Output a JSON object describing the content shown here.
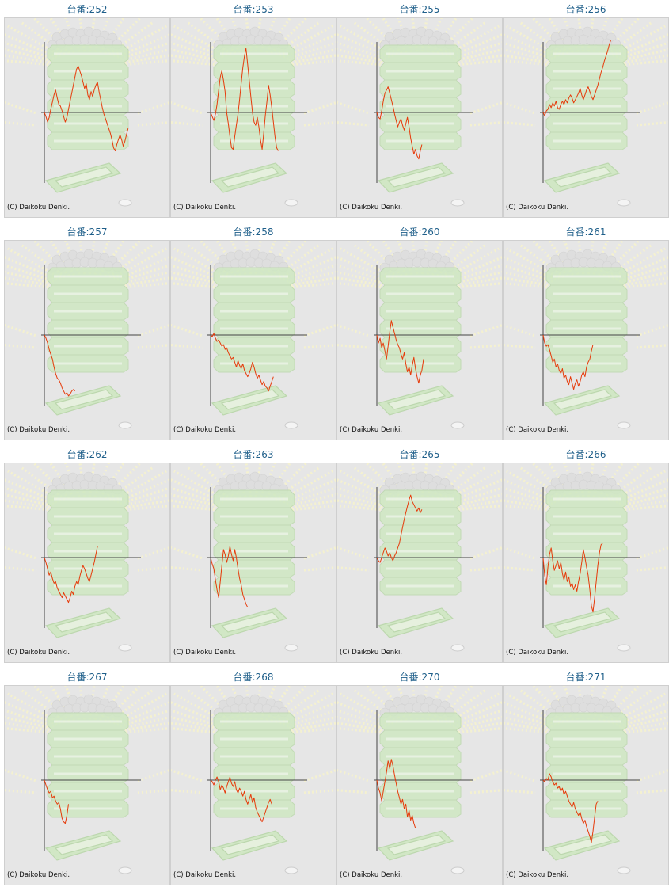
{
  "watermark": "(C) Daikoku Denki.",
  "colors": {
    "title_text": "#1f5f8a",
    "line": "#e63a0a",
    "axis": "#444444",
    "background": "#e6e6e6",
    "border": "#cfcfcf",
    "artwork_green": "#cfe8c2",
    "artwork_rays": "#f5f2cf"
  },
  "chart_data": [
    {
      "type": "line",
      "title": "台番:252",
      "xlim": [
        0,
        120
      ],
      "ylim": [
        -88,
        88
      ],
      "grid": false,
      "y": [
        0,
        -5,
        -12,
        -6,
        4,
        13,
        22,
        28,
        18,
        10,
        8,
        2,
        -5,
        -12,
        -6,
        4,
        14,
        24,
        34,
        44,
        54,
        58,
        52,
        46,
        38,
        30,
        36,
        22,
        16,
        26,
        20,
        28,
        34,
        38,
        26,
        16,
        6,
        -2,
        -8,
        -14,
        -20,
        -26,
        -34,
        -44,
        -48,
        -40,
        -34,
        -28,
        -34,
        -42,
        -36,
        -28,
        -20
      ]
    },
    {
      "type": "line",
      "title": "台番:253",
      "xlim": [
        0,
        120
      ],
      "ylim": [
        -88,
        88
      ],
      "grid": false,
      "y": [
        0,
        -5,
        -10,
        -2,
        10,
        28,
        44,
        52,
        40,
        26,
        0,
        -14,
        -30,
        -44,
        -46,
        -30,
        -16,
        -2,
        16,
        36,
        56,
        70,
        80,
        60,
        40,
        20,
        0,
        -12,
        -16,
        -6,
        -18,
        -34,
        -46,
        -26,
        -4,
        14,
        34,
        22,
        6,
        -12,
        -30,
        -44,
        -48
      ]
    },
    {
      "type": "line",
      "title": "台番:255",
      "xlim": [
        0,
        120
      ],
      "ylim": [
        -88,
        88
      ],
      "grid": false,
      "y": [
        0,
        -6,
        -8,
        2,
        14,
        24,
        28,
        32,
        24,
        16,
        8,
        -2,
        -10,
        -18,
        -12,
        -8,
        -16,
        -22,
        -14,
        -6,
        -18,
        -32,
        -42,
        -52,
        -46,
        -54,
        -58,
        -48,
        -40
      ]
    },
    {
      "type": "line",
      "title": "台番:256",
      "xlim": [
        0,
        120
      ],
      "ylim": [
        -88,
        88
      ],
      "grid": false,
      "y": [
        0,
        -4,
        2,
        4,
        10,
        6,
        12,
        8,
        14,
        6,
        4,
        10,
        14,
        10,
        16,
        12,
        18,
        22,
        18,
        12,
        16,
        20,
        24,
        30,
        22,
        16,
        22,
        28,
        32,
        26,
        20,
        16,
        22,
        28,
        34,
        42,
        50,
        56,
        64,
        70,
        76,
        84,
        90
      ]
    },
    {
      "type": "line",
      "title": "台番:257",
      "xlim": [
        0,
        120
      ],
      "ylim": [
        -88,
        88
      ],
      "grid": false,
      "y": [
        0,
        -4,
        -10,
        -18,
        -24,
        -30,
        -40,
        -48,
        -54,
        -56,
        -60,
        -66,
        -70,
        -74,
        -72,
        -76,
        -74,
        -70,
        -68,
        -70
      ]
    },
    {
      "type": "line",
      "title": "台番:258",
      "xlim": [
        0,
        120
      ],
      "ylim": [
        -88,
        88
      ],
      "grid": false,
      "y": [
        0,
        -2,
        2,
        -4,
        -8,
        -6,
        -10,
        -14,
        -12,
        -18,
        -16,
        -22,
        -26,
        -30,
        -28,
        -34,
        -40,
        -32,
        -38,
        -42,
        -36,
        -44,
        -48,
        -52,
        -48,
        -42,
        -34,
        -40,
        -48,
        -54,
        -50,
        -56,
        -62,
        -58,
        -64,
        -66,
        -70,
        -64,
        -58,
        -52
      ]
    },
    {
      "type": "line",
      "title": "台番:260",
      "xlim": [
        0,
        120
      ],
      "ylim": [
        -88,
        88
      ],
      "grid": false,
      "y": [
        0,
        -10,
        -4,
        -16,
        -10,
        -20,
        -30,
        -14,
        4,
        18,
        10,
        2,
        -6,
        -12,
        -16,
        -24,
        -30,
        -22,
        -36,
        -46,
        -40,
        -50,
        -38,
        -28,
        -42,
        -52,
        -60,
        -50,
        -44,
        -30
      ]
    },
    {
      "type": "line",
      "title": "台番:261",
      "xlim": [
        0,
        120
      ],
      "ylim": [
        -88,
        88
      ],
      "grid": false,
      "y": [
        0,
        -10,
        -14,
        -12,
        -18,
        -26,
        -34,
        -30,
        -40,
        -36,
        -44,
        -48,
        -42,
        -54,
        -50,
        -58,
        -62,
        -52,
        -60,
        -68,
        -60,
        -56,
        -64,
        -58,
        -50,
        -46,
        -52,
        -40,
        -34,
        -30,
        -20,
        -12
      ]
    },
    {
      "type": "line",
      "title": "台番:262",
      "xlim": [
        0,
        120
      ],
      "ylim": [
        -88,
        88
      ],
      "grid": false,
      "y": [
        0,
        -6,
        -14,
        -22,
        -18,
        -26,
        -32,
        -30,
        -38,
        -42,
        -46,
        -50,
        -44,
        -48,
        -52,
        -56,
        -50,
        -42,
        -46,
        -36,
        -30,
        -34,
        -24,
        -16,
        -10,
        -14,
        -20,
        -26,
        -30,
        -22,
        -14,
        -6,
        4,
        14
      ]
    },
    {
      "type": "line",
      "title": "台番:263",
      "xlim": [
        0,
        120
      ],
      "ylim": [
        -88,
        88
      ],
      "grid": false,
      "y": [
        0,
        -8,
        -14,
        -28,
        -40,
        -50,
        -30,
        -10,
        10,
        4,
        -6,
        2,
        14,
        4,
        -4,
        10,
        0,
        -14,
        -26,
        -34,
        -46,
        -52,
        -58,
        -62
      ]
    },
    {
      "type": "line",
      "title": "台番:265",
      "xlim": [
        0,
        120
      ],
      "ylim": [
        -88,
        88
      ],
      "grid": false,
      "y": [
        0,
        -4,
        -6,
        0,
        6,
        12,
        8,
        2,
        6,
        0,
        -4,
        2,
        6,
        12,
        18,
        28,
        38,
        48,
        56,
        64,
        72,
        78,
        70,
        66,
        62,
        58,
        62,
        56,
        60
      ]
    },
    {
      "type": "line",
      "title": "台番:266",
      "xlim": [
        0,
        120
      ],
      "ylim": [
        -88,
        88
      ],
      "grid": false,
      "y": [
        0,
        -22,
        -34,
        -12,
        4,
        12,
        -4,
        -16,
        -10,
        -4,
        -14,
        -6,
        -20,
        -28,
        -18,
        -30,
        -24,
        -36,
        -32,
        -40,
        -34,
        -42,
        -30,
        -20,
        -6,
        10,
        0,
        -12,
        -22,
        -40,
        -60,
        -68,
        -50,
        -30,
        -10,
        6,
        16,
        18
      ]
    },
    {
      "type": "line",
      "title": "台番:267",
      "xlim": [
        0,
        120
      ],
      "ylim": [
        -88,
        88
      ],
      "grid": false,
      "y": [
        0,
        -6,
        -12,
        -16,
        -14,
        -22,
        -20,
        -26,
        -30,
        -28,
        -36,
        -48,
        -52,
        -54,
        -44,
        -30
      ]
    },
    {
      "type": "line",
      "title": "台番:268",
      "xlim": [
        0,
        120
      ],
      "ylim": [
        -88,
        88
      ],
      "grid": false,
      "y": [
        0,
        -2,
        -6,
        0,
        4,
        -2,
        -12,
        -6,
        -10,
        -16,
        -8,
        -2,
        4,
        -4,
        -8,
        -2,
        -12,
        -16,
        -10,
        -14,
        -20,
        -14,
        -24,
        -30,
        -24,
        -18,
        -28,
        -22,
        -34,
        -40,
        -44,
        -48,
        -52,
        -46,
        -40,
        -34,
        -28,
        -24,
        -30
      ]
    },
    {
      "type": "line",
      "title": "台番:270",
      "xlim": [
        0,
        120
      ],
      "ylim": [
        -88,
        88
      ],
      "grid": false,
      "y": [
        0,
        -10,
        -16,
        -26,
        -14,
        -2,
        10,
        24,
        14,
        26,
        18,
        6,
        -4,
        -14,
        -22,
        -30,
        -24,
        -36,
        -30,
        -46,
        -38,
        -50,
        -44,
        -54,
        -60
      ]
    },
    {
      "type": "line",
      "title": "台番:271",
      "xlim": [
        0,
        120
      ],
      "ylim": [
        -88,
        88
      ],
      "grid": false,
      "y": [
        0,
        -2,
        2,
        0,
        8,
        4,
        -2,
        -6,
        -4,
        -10,
        -8,
        -14,
        -10,
        -18,
        -14,
        -20,
        -26,
        -30,
        -34,
        -28,
        -36,
        -40,
        -44,
        -40,
        -48,
        -54,
        -50,
        -58,
        -64,
        -70,
        -78,
        -64,
        -46,
        -30,
        -26
      ]
    }
  ]
}
